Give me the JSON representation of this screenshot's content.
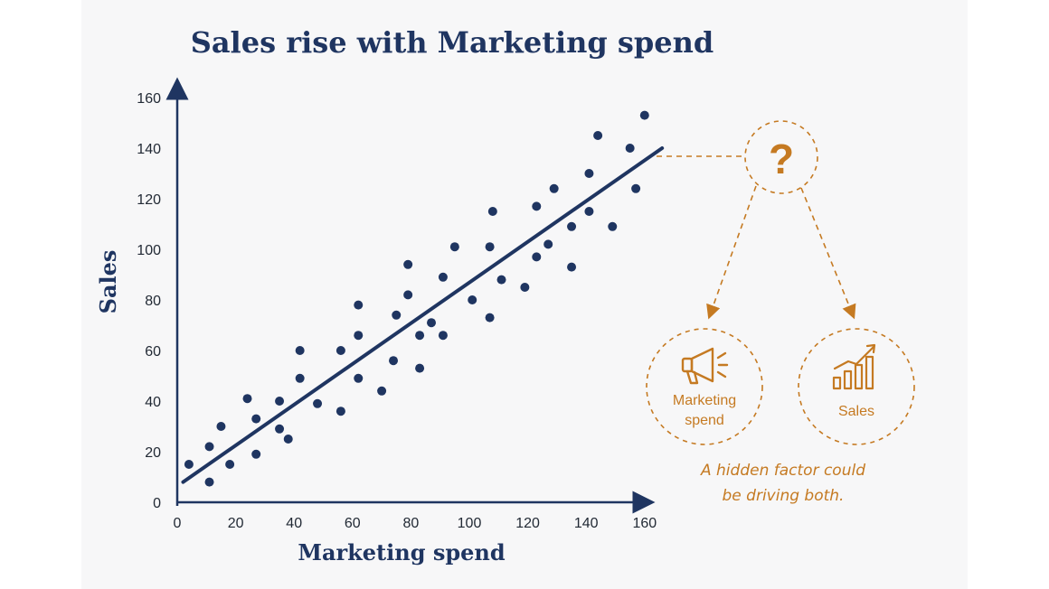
{
  "chart_data": {
    "type": "scatter",
    "title": "Sales rise with Marketing spend",
    "xlabel": "Marketing spend",
    "ylabel": "Sales",
    "xlim": [
      0,
      165
    ],
    "ylim": [
      0,
      160
    ],
    "x_ticks": [
      "0",
      "20",
      "40",
      "60",
      "80",
      "100",
      "120",
      "140",
      "160"
    ],
    "y_ticks": [
      "0",
      "20",
      "40",
      "60",
      "80",
      "100",
      "120",
      "140",
      "160"
    ],
    "grid": false,
    "points": [
      {
        "x": 4,
        "y": 15
      },
      {
        "x": 11,
        "y": 22
      },
      {
        "x": 11,
        "y": 8
      },
      {
        "x": 15,
        "y": 30
      },
      {
        "x": 18,
        "y": 15
      },
      {
        "x": 24,
        "y": 41
      },
      {
        "x": 27,
        "y": 33
      },
      {
        "x": 27,
        "y": 19
      },
      {
        "x": 35,
        "y": 40
      },
      {
        "x": 35,
        "y": 29
      },
      {
        "x": 38,
        "y": 25
      },
      {
        "x": 42,
        "y": 60
      },
      {
        "x": 42,
        "y": 49
      },
      {
        "x": 48,
        "y": 39
      },
      {
        "x": 56,
        "y": 60
      },
      {
        "x": 56,
        "y": 36
      },
      {
        "x": 62,
        "y": 78
      },
      {
        "x": 62,
        "y": 66
      },
      {
        "x": 62,
        "y": 49
      },
      {
        "x": 70,
        "y": 44
      },
      {
        "x": 74,
        "y": 56
      },
      {
        "x": 75,
        "y": 74
      },
      {
        "x": 79,
        "y": 94
      },
      {
        "x": 79,
        "y": 82
      },
      {
        "x": 83,
        "y": 66
      },
      {
        "x": 83,
        "y": 53
      },
      {
        "x": 87,
        "y": 71
      },
      {
        "x": 91,
        "y": 89
      },
      {
        "x": 91,
        "y": 66
      },
      {
        "x": 95,
        "y": 101
      },
      {
        "x": 101,
        "y": 80
      },
      {
        "x": 108,
        "y": 115
      },
      {
        "x": 107,
        "y": 101
      },
      {
        "x": 107,
        "y": 73
      },
      {
        "x": 111,
        "y": 88
      },
      {
        "x": 119,
        "y": 85
      },
      {
        "x": 123,
        "y": 117
      },
      {
        "x": 123,
        "y": 97
      },
      {
        "x": 127,
        "y": 102
      },
      {
        "x": 129,
        "y": 124
      },
      {
        "x": 135,
        "y": 109
      },
      {
        "x": 135,
        "y": 93
      },
      {
        "x": 141,
        "y": 130
      },
      {
        "x": 141,
        "y": 115
      },
      {
        "x": 144,
        "y": 145
      },
      {
        "x": 149,
        "y": 109
      },
      {
        "x": 155,
        "y": 140
      },
      {
        "x": 157,
        "y": 124
      },
      {
        "x": 160,
        "y": 153
      }
    ],
    "trendline": {
      "x": [
        2,
        166
      ],
      "y": [
        8,
        140
      ]
    }
  },
  "callout": {
    "question_mark": "?",
    "nodes": [
      {
        "label_lines": [
          "Marketing",
          "spend"
        ],
        "icon": "megaphone-icon"
      },
      {
        "label_lines": [
          "Sales"
        ],
        "icon": "growth-chart-icon"
      }
    ],
    "caption_lines": [
      "A hidden factor could",
      "be driving both."
    ]
  },
  "colors": {
    "navy": "#1f3561",
    "orange": "#c57a22",
    "background": "#f7f7f8"
  }
}
